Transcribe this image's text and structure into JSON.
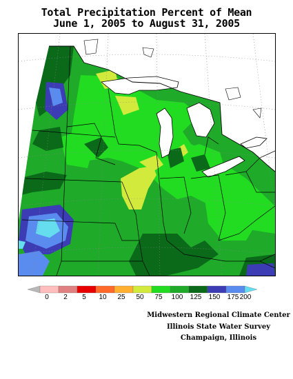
{
  "title": {
    "line1": "Total Precipitation Percent of Mean",
    "line2": "June 1, 2005 to August 31, 2005"
  },
  "legend": {
    "labels": [
      "0",
      "2",
      "5",
      "10",
      "25",
      "50",
      "75",
      "100",
      "125",
      "150",
      "175",
      "200"
    ],
    "colors": {
      "below_0": "#b8b8b8",
      "c_0_2": "#ffbebe",
      "c_2_5": "#e08080",
      "c_5_10": "#e80000",
      "c_10_25": "#ff6a2a",
      "c_25_50": "#ffb030",
      "c_50_75": "#d2ea3c",
      "c_75_100": "#22dc22",
      "c_100_125": "#1faa2a",
      "c_125_150": "#0b6a1a",
      "c_150_175": "#3c3cb4",
      "c_175_200": "#5a8cf0",
      "above_200": "#66ddee"
    }
  },
  "map": {
    "region": "Midwest United States",
    "water_color": "#ffffff",
    "outline_color": "#000000"
  },
  "credits": {
    "line1": "Midwestern Regional Climate Center",
    "line2": "Illinois State Water Survey",
    "line3": "Champaign, Illinois"
  }
}
